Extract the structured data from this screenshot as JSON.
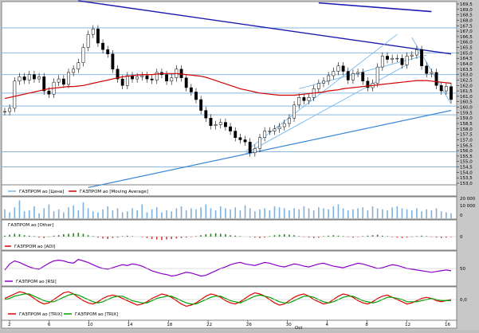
{
  "colors": {
    "frame_bg": "#c8c8c8",
    "panel_bg": "#ffffff",
    "grid": "#87b7df",
    "candle": "#000000",
    "ma": "#d00000",
    "trend_dark": "#1a1ab0",
    "trend_light": "#3b87d6",
    "channel": "#74b8ea",
    "volume": "#7fb2de",
    "momentum_pos": "#2f7d2f",
    "momentum_neg": "#d04040",
    "rsi": "#8a00c8",
    "trix": "#e00000",
    "trix_signal": "#00a000"
  },
  "chart_data": [
    {
      "type": "candlestick",
      "title": "",
      "series": [
        {
          "name": "ГАЗПРОМ ао [Цена]",
          "values": [
            159.6,
            159.9,
            162.4,
            162.8,
            162.5,
            163.0,
            162.6,
            162.8,
            161.5,
            161.2,
            162.3,
            162.6,
            162.1,
            163.2,
            163.5,
            164.1,
            165.5,
            166.7,
            167.2,
            165.9,
            165.3,
            164.9,
            163.5,
            162.6,
            162.0,
            162.9,
            162.6,
            162.8,
            162.9,
            162.6,
            162.5,
            163.2,
            163.0,
            162.4,
            162.7,
            163.5,
            162.7,
            161.8,
            161.4,
            160.7,
            159.7,
            159.0,
            158.3,
            158.4,
            158.6,
            158.2,
            157.8,
            157.2,
            157.0,
            156.8,
            155.8,
            156.2,
            157.2,
            157.8,
            157.8,
            158.0,
            158.2,
            158.5,
            159.0,
            160.2,
            160.9,
            160.6,
            160.9,
            161.7,
            162.2,
            162.4,
            162.9,
            163.3,
            163.8,
            163.3,
            162.5,
            163.1,
            163.2,
            162.4,
            161.8,
            162.2,
            163.7,
            164.7,
            164.4,
            164.5,
            164.5,
            163.9,
            164.7,
            164.8,
            165.3,
            163.8,
            163.1,
            163.2,
            162.0,
            161.5,
            161.9,
            160.7
          ]
        },
        {
          "name": "ГАЗПРОМ ао [Moving Average]",
          "values": [
            160.8,
            160.9,
            161.0,
            161.1,
            161.2,
            161.3,
            161.4,
            161.5,
            161.6,
            161.7,
            161.75,
            161.8,
            161.85,
            161.9,
            161.9,
            161.95,
            162.0,
            162.1,
            162.2,
            162.3,
            162.4,
            162.5,
            162.6,
            162.7,
            162.8,
            162.85,
            162.9,
            162.95,
            163.0,
            163.0,
            163.0,
            163.05,
            163.1,
            163.1,
            163.1,
            163.1,
            163.05,
            163.0,
            162.95,
            162.9,
            162.85,
            162.75,
            162.6,
            162.45,
            162.3,
            162.15,
            162.0,
            161.85,
            161.7,
            161.6,
            161.5,
            161.4,
            161.3,
            161.25,
            161.2,
            161.15,
            161.1,
            161.1,
            161.1,
            161.1,
            161.15,
            161.2,
            161.25,
            161.3,
            161.35,
            161.4,
            161.5,
            161.55,
            161.6,
            161.7,
            161.75,
            161.8,
            161.85,
            161.9,
            161.95,
            162.0,
            162.05,
            162.1,
            162.15,
            162.2,
            162.25,
            162.3,
            162.35,
            162.4,
            162.45,
            162.45,
            162.45,
            162.4,
            162.35,
            162.3,
            162.25,
            162.2
          ]
        }
      ],
      "ylim": [
        153.0,
        169.5
      ],
      "yticks": [
        "169,5",
        "169,0",
        "168,5",
        "168,0",
        "167,5",
        "167,0",
        "166,5",
        "166,0",
        "165,5",
        "165,0",
        "164,5",
        "164,0",
        "163,5",
        "163,0",
        "162,5",
        "162,0",
        "161,5",
        "161,0",
        "160,5",
        "160,0",
        "159,5",
        "159,0",
        "158,5",
        "158,0",
        "157,5",
        "157,0",
        "156,5",
        "156,0",
        "155,5",
        "155,0",
        "154,5",
        "154,0",
        "153,5",
        "153,0"
      ],
      "xticks": [
        "2",
        "6",
        "10",
        "14",
        "18",
        "22",
        "26",
        "30",
        "4",
        "8",
        "12",
        "16"
      ],
      "period_label": "Oct",
      "horizontal_levels": [
        167.3,
        165.0,
        163.0,
        161.3,
        160.1,
        159.3,
        155.9,
        154.5
      ],
      "grid": true
    },
    {
      "type": "bar",
      "name": "volume",
      "yticks": [
        "20 000",
        "10 000",
        "0"
      ],
      "values": [
        0.45,
        0.3,
        0.55,
        0.9,
        0.35,
        0.4,
        0.6,
        0.25,
        0.5,
        0.7,
        0.35,
        0.45,
        0.3,
        0.55,
        0.65,
        0.4,
        0.8,
        0.5,
        0.35,
        0.3,
        0.45,
        0.6,
        0.4,
        0.5,
        0.3,
        0.35,
        0.5,
        0.4,
        0.7,
        0.3,
        0.45,
        0.55,
        0.3,
        0.4,
        0.35,
        0.5,
        0.6,
        0.4,
        0.5,
        0.45,
        0.55,
        0.7,
        0.5,
        0.4,
        0.6,
        0.5,
        0.45,
        0.55,
        0.4,
        0.65,
        0.5,
        0.35,
        0.45,
        0.5,
        0.4,
        0.6,
        0.55,
        0.5,
        0.4,
        0.5,
        0.45,
        0.6,
        0.5,
        0.4,
        0.55,
        0.5,
        0.45,
        0.6,
        0.7,
        0.5,
        0.4,
        0.45,
        0.5,
        0.55,
        0.4,
        0.6,
        0.5,
        0.45,
        0.4,
        0.55,
        0.6,
        0.5,
        0.45,
        0.4,
        0.5,
        0.35,
        0.45,
        0.4,
        0.5,
        0.35,
        0.3,
        0.25
      ]
    },
    {
      "type": "bar",
      "name": "ГАЗПРОМ ао [Other]",
      "yticks": [
        "0"
      ],
      "values": [
        0.2,
        0.4,
        0.6,
        0.5,
        0.3,
        0.2,
        0.1,
        -0.2,
        -0.3,
        -0.1,
        0.2,
        0.3,
        0.5,
        0.6,
        0.7,
        0.8,
        0.6,
        0.3,
        0.1,
        -0.2,
        -0.4,
        -0.5,
        -0.3,
        -0.2,
        0.1,
        0.2,
        0.1,
        0.0,
        -0.1,
        -0.3,
        -0.5,
        -0.6,
        -0.7,
        -0.6,
        -0.5,
        -0.4,
        -0.3,
        -0.2,
        -0.1,
        0.1,
        0.3,
        0.5,
        0.6,
        0.7,
        0.6,
        0.5,
        0.3,
        0.2,
        0.1,
        0.0,
        -0.1,
        -0.2,
        -0.3,
        -0.2,
        0.1,
        0.3,
        0.4,
        0.5,
        0.4,
        0.3,
        0.1,
        -0.1,
        -0.2,
        -0.3,
        -0.2,
        0.1,
        0.2,
        0.3,
        0.2,
        0.1,
        -0.1,
        -0.2,
        -0.1,
        0.1,
        0.2,
        0.3,
        0.4,
        0.2,
        0.1,
        -0.1,
        -0.2,
        -0.3,
        -0.2,
        -0.1,
        0.1,
        0.2,
        0.1,
        -0.1,
        -0.2,
        -0.3,
        -0.2,
        -0.1
      ]
    },
    {
      "type": "line",
      "name": "ГАЗПРОМ ао [RSI]",
      "yticks": [
        "50"
      ],
      "values": [
        48,
        56,
        60,
        58,
        55,
        52,
        50,
        49,
        53,
        57,
        60,
        61,
        60,
        58,
        57,
        62,
        60,
        58,
        55,
        52,
        50,
        49,
        51,
        53,
        55,
        54,
        56,
        55,
        53,
        50,
        47,
        45,
        43,
        42,
        40,
        41,
        43,
        45,
        44,
        42,
        40,
        41,
        44,
        47,
        50,
        52,
        55,
        57,
        58,
        56,
        55,
        54,
        56,
        58,
        57,
        55,
        53,
        52,
        54,
        56,
        55,
        53,
        52,
        54,
        56,
        57,
        55,
        53,
        52,
        51,
        53,
        55,
        57,
        56,
        54,
        52,
        50,
        51,
        53,
        55,
        54,
        52,
        50,
        49,
        48,
        47,
        46,
        45,
        46,
        47,
        48,
        47
      ]
    },
    {
      "type": "line",
      "name": "trix",
      "yticks": [
        "0,0"
      ],
      "series": [
        {
          "name": "ГАЗПРОМ ао [TRIX]",
          "values": [
            0.1,
            0.3,
            0.5,
            0.7,
            0.6,
            0.4,
            0.1,
            -0.2,
            -0.4,
            -0.3,
            0.0,
            0.3,
            0.6,
            0.7,
            0.5,
            0.2,
            -0.1,
            -0.3,
            -0.4,
            -0.2,
            0.1,
            0.3,
            0.4,
            0.3,
            0.1,
            -0.1,
            -0.3,
            -0.5,
            -0.4,
            -0.2,
            0.1,
            0.3,
            0.5,
            0.4,
            0.2,
            -0.1,
            -0.4,
            -0.6,
            -0.5,
            -0.3,
            0.0,
            0.3,
            0.5,
            0.4,
            0.2,
            -0.1,
            -0.3,
            -0.4,
            -0.2,
            0.1,
            0.4,
            0.6,
            0.5,
            0.3,
            0.0,
            -0.3,
            -0.5,
            -0.4,
            -0.1,
            0.2,
            0.4,
            0.5,
            0.3,
            0.0,
            -0.2,
            -0.4,
            -0.3,
            0.0,
            0.3,
            0.5,
            0.4,
            0.2,
            -0.1,
            -0.3,
            -0.4,
            -0.2,
            0.1,
            0.3,
            0.4,
            0.2,
            0.0,
            -0.2,
            -0.4,
            -0.3,
            -0.1,
            0.1,
            0.2,
            0.1,
            -0.1,
            -0.2,
            -0.1,
            0.0
          ]
        },
        {
          "name": "ГАЗПРОМ ао [TRIX]",
          "values": [
            0.0,
            0.1,
            0.3,
            0.4,
            0.5,
            0.5,
            0.3,
            0.1,
            -0.1,
            -0.2,
            -0.2,
            0.0,
            0.2,
            0.4,
            0.5,
            0.4,
            0.2,
            0.0,
            -0.2,
            -0.3,
            -0.2,
            0.0,
            0.2,
            0.3,
            0.3,
            0.1,
            -0.1,
            -0.2,
            -0.3,
            -0.3,
            -0.1,
            0.1,
            0.2,
            0.3,
            0.3,
            0.1,
            -0.1,
            -0.3,
            -0.4,
            -0.4,
            -0.2,
            0.0,
            0.2,
            0.3,
            0.3,
            0.1,
            -0.1,
            -0.2,
            -0.3,
            -0.1,
            0.1,
            0.3,
            0.4,
            0.3,
            0.2,
            0.0,
            -0.2,
            -0.3,
            -0.3,
            -0.1,
            0.1,
            0.3,
            0.3,
            0.2,
            0.0,
            -0.2,
            -0.3,
            -0.2,
            0.0,
            0.2,
            0.3,
            0.3,
            0.1,
            -0.1,
            -0.2,
            -0.3,
            -0.2,
            0.0,
            0.2,
            0.2,
            0.1,
            0.0,
            -0.2,
            -0.2,
            -0.2,
            -0.1,
            0.0,
            0.1,
            0.0,
            -0.1,
            -0.1,
            -0.1
          ]
        }
      ]
    }
  ],
  "legends": {
    "price": {
      "a": "ГАЗПРОМ ао [Цена]",
      "b": "ГАЗПРОМ ао [Moving Average]"
    },
    "other": "ГАЗПРОМ ао [Other]",
    "adi": "ГАЗПРОМ ао [ADI]",
    "rsi": "ГАЗПРОМ ао [RSI]",
    "trix": {
      "a": "ГАЗПРОМ ао [TRIX]",
      "b": "ГАЗПРОМ ао [TRIX]"
    }
  }
}
